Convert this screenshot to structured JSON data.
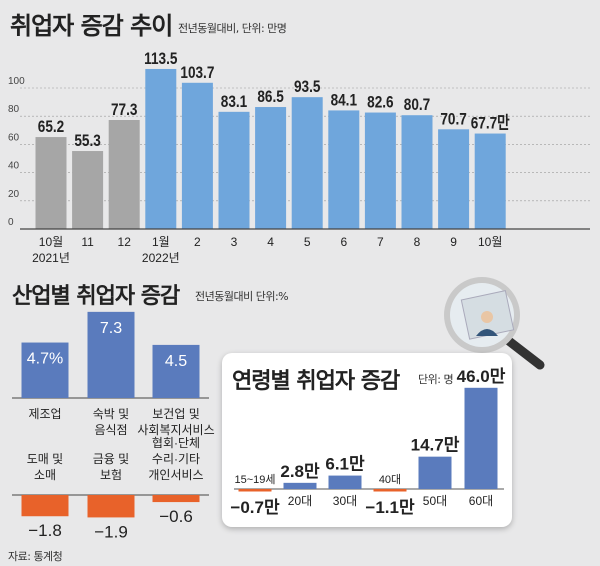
{
  "source": "자료: 통계청",
  "chart_data": [
    {
      "type": "bar",
      "title": "취업자 증감 추이",
      "subtitle": "전년동월대비, 단위: 만명",
      "categories": [
        "10월",
        "11",
        "12",
        "1월",
        "2",
        "3",
        "4",
        "5",
        "6",
        "7",
        "8",
        "9",
        "10월"
      ],
      "year_labels": [
        {
          "index": 0,
          "label": "2021년"
        },
        {
          "index": 3,
          "label": "2022년"
        }
      ],
      "values": [
        65.2,
        55.3,
        77.3,
        113.5,
        103.7,
        83.1,
        86.5,
        93.5,
        84.1,
        82.6,
        80.7,
        70.7,
        67.7
      ],
      "value_labels": [
        "65.2",
        "55.3",
        "77.3",
        "113.5",
        "103.7",
        "83.1",
        "86.5",
        "93.5",
        "84.1",
        "82.6",
        "80.7",
        "70.7",
        "67.7만"
      ],
      "series_colors": {
        "2021": "#a6a6a6",
        "2022": "#6fa6dc"
      },
      "yticks": [
        0,
        20,
        40,
        60,
        80,
        100
      ],
      "ylim": [
        0,
        120
      ],
      "grid": true
    },
    {
      "type": "bar",
      "title": "산업별 취업자 증감",
      "subtitle": "전년동월대비 단위:%",
      "categories": [
        "제조업",
        "숙박 및 음식점",
        "보건업 및 사회복지서비스",
        "도매 및 소매",
        "금융 및 보험",
        "협회·단체 수리·기타 개인서비스"
      ],
      "values": [
        4.7,
        7.3,
        4.5,
        -1.8,
        -1.9,
        -0.6
      ],
      "value_labels": [
        "4.7%",
        "7.3",
        "4.5",
        "−1.8",
        "−1.9",
        "−0.6"
      ],
      "colors": {
        "positive": "#5a7bbd",
        "negative": "#e8622a"
      }
    },
    {
      "type": "bar",
      "title": "연령별 취업자 증감",
      "subtitle": "단위: 명",
      "categories": [
        "15~19세",
        "20대",
        "30대",
        "40대",
        "50대",
        "60대"
      ],
      "values": [
        -0.7,
        2.8,
        6.1,
        -1.1,
        14.7,
        46.0
      ],
      "value_labels": [
        "−0.7만",
        "2.8만",
        "6.1만",
        "−1.1만",
        "14.7만",
        "46.0만"
      ],
      "colors": {
        "positive": "#5a7bbd",
        "negative": "#e8622a"
      }
    }
  ]
}
